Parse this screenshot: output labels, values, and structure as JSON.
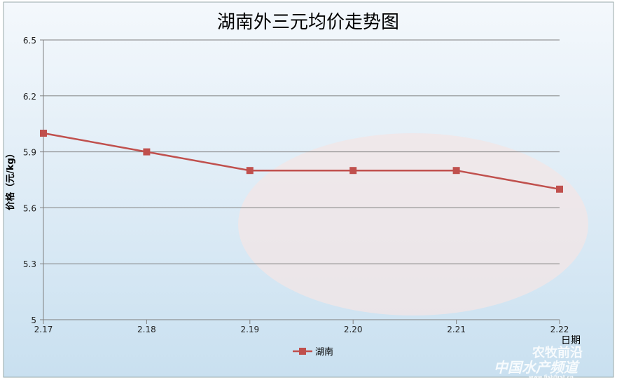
{
  "chart_data": {
    "type": "line",
    "title": "湖南外三元均价走势图",
    "xlabel": "日期",
    "ylabel": "价格（元/kg）",
    "categories": [
      "2.17",
      "2.18",
      "2.19",
      "2.20",
      "2.21",
      "2.22"
    ],
    "series": [
      {
        "name": "湖南",
        "values": [
          6.0,
          5.9,
          5.8,
          5.8,
          5.8,
          5.7
        ],
        "color": "#c0504d",
        "marker": "square"
      }
    ],
    "ylim": [
      5,
      6.5
    ],
    "yticks": [
      "5",
      "5.3",
      "5.6",
      "5.9",
      "6.2",
      "6.5"
    ],
    "grid": true,
    "legend": "bottom-center",
    "background": "#dcebf5"
  },
  "watermark": {
    "line1": "农牧前沿",
    "line2": "中国水产频道",
    "line3": "www.fishfirst.cn"
  }
}
